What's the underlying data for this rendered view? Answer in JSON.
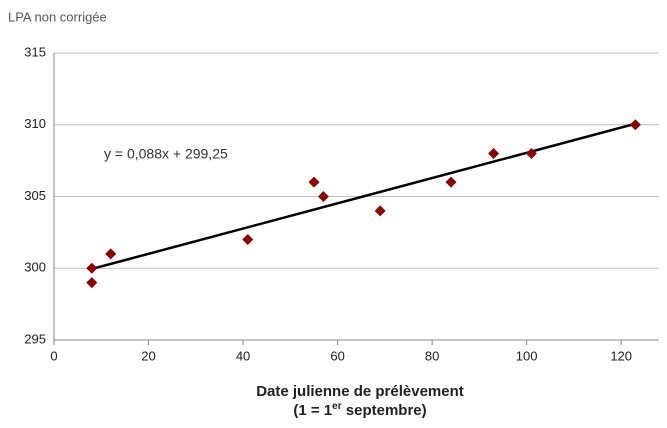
{
  "chart_data": {
    "type": "scatter",
    "y_label": "LPA non corrigée",
    "x_label": "Date julienne de prélèvement",
    "x_label_2": {
      "before": "(1 = 1",
      "sup": "er",
      "after": " septembre)"
    },
    "annotation": "y = 0,088x + 299,25",
    "x": [
      8,
      8,
      12,
      41,
      55,
      57,
      69,
      84,
      93,
      101,
      123
    ],
    "values": [
      300,
      299,
      301,
      302,
      306,
      305,
      304,
      306,
      308,
      308,
      310
    ],
    "color": "#8b0000",
    "trendline": {
      "x": [
        8,
        123
      ],
      "values": [
        299.95,
        310.07
      ],
      "color": "#000000"
    },
    "xlim": [
      0,
      128
    ],
    "xticks": [
      0,
      20,
      40,
      60,
      80,
      100,
      120
    ],
    "ylim": [
      295,
      315
    ],
    "yticks": [
      295,
      300,
      305,
      310,
      315
    ],
    "grid": true
  }
}
